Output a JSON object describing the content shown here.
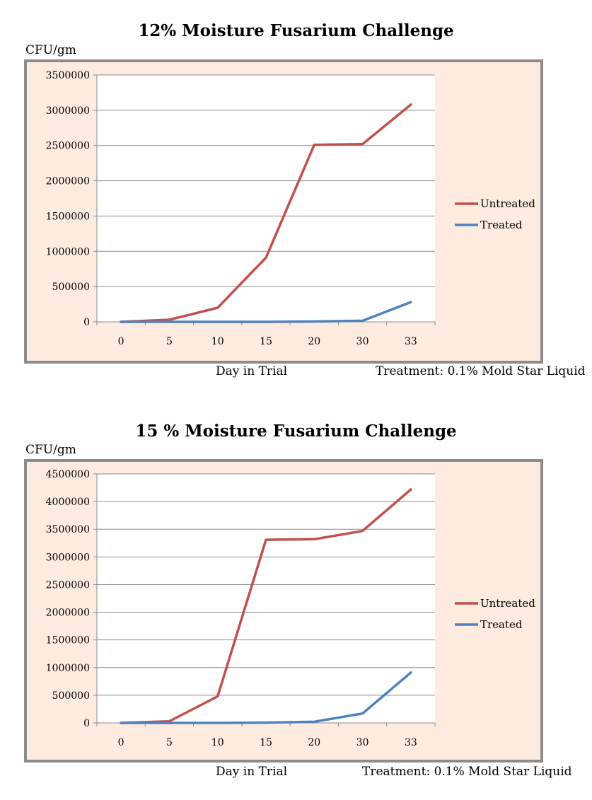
{
  "chart_data": [
    {
      "type": "line",
      "title": "12% Moisture Fusarium Challenge",
      "ylabel": "CFU/gm",
      "xlabel": "Day in Trial",
      "note": "Treatment: 0.1% Mold Star Liquid",
      "categories": [
        "0",
        "5",
        "10",
        "15",
        "20",
        "30",
        "33"
      ],
      "ylim": [
        0,
        3500000
      ],
      "yticks": [
        "0",
        "500000",
        "1000000",
        "1500000",
        "2000000",
        "2500000",
        "3000000",
        "3500000"
      ],
      "grid": true,
      "legend_position": "right",
      "series": [
        {
          "name": "Untreated",
          "color": "#c0504d",
          "values": [
            0,
            30000,
            200000,
            910000,
            2510000,
            2520000,
            3080000
          ]
        },
        {
          "name": "Treated",
          "color": "#4f81bd",
          "values": [
            0,
            0,
            0,
            0,
            5000,
            15000,
            280000
          ]
        }
      ]
    },
    {
      "type": "line",
      "title": "15 % Moisture Fusarium Challenge",
      "ylabel": "CFU/gm",
      "xlabel": "Day in Trial",
      "note": "Treatment: 0.1% Mold Star Liquid",
      "categories": [
        "0",
        "5",
        "10",
        "15",
        "20",
        "30",
        "33"
      ],
      "ylim": [
        0,
        4500000
      ],
      "yticks": [
        "0",
        "500000",
        "1000000",
        "1500000",
        "2000000",
        "2500000",
        "3000000",
        "3500000",
        "4000000",
        "4500000"
      ],
      "grid": true,
      "legend_position": "right",
      "series": [
        {
          "name": "Untreated",
          "color": "#c0504d",
          "values": [
            0,
            30000,
            480000,
            3310000,
            3320000,
            3470000,
            4220000
          ]
        },
        {
          "name": "Treated",
          "color": "#4f81bd",
          "values": [
            0,
            0,
            0,
            5000,
            20000,
            170000,
            910000
          ]
        }
      ]
    }
  ]
}
